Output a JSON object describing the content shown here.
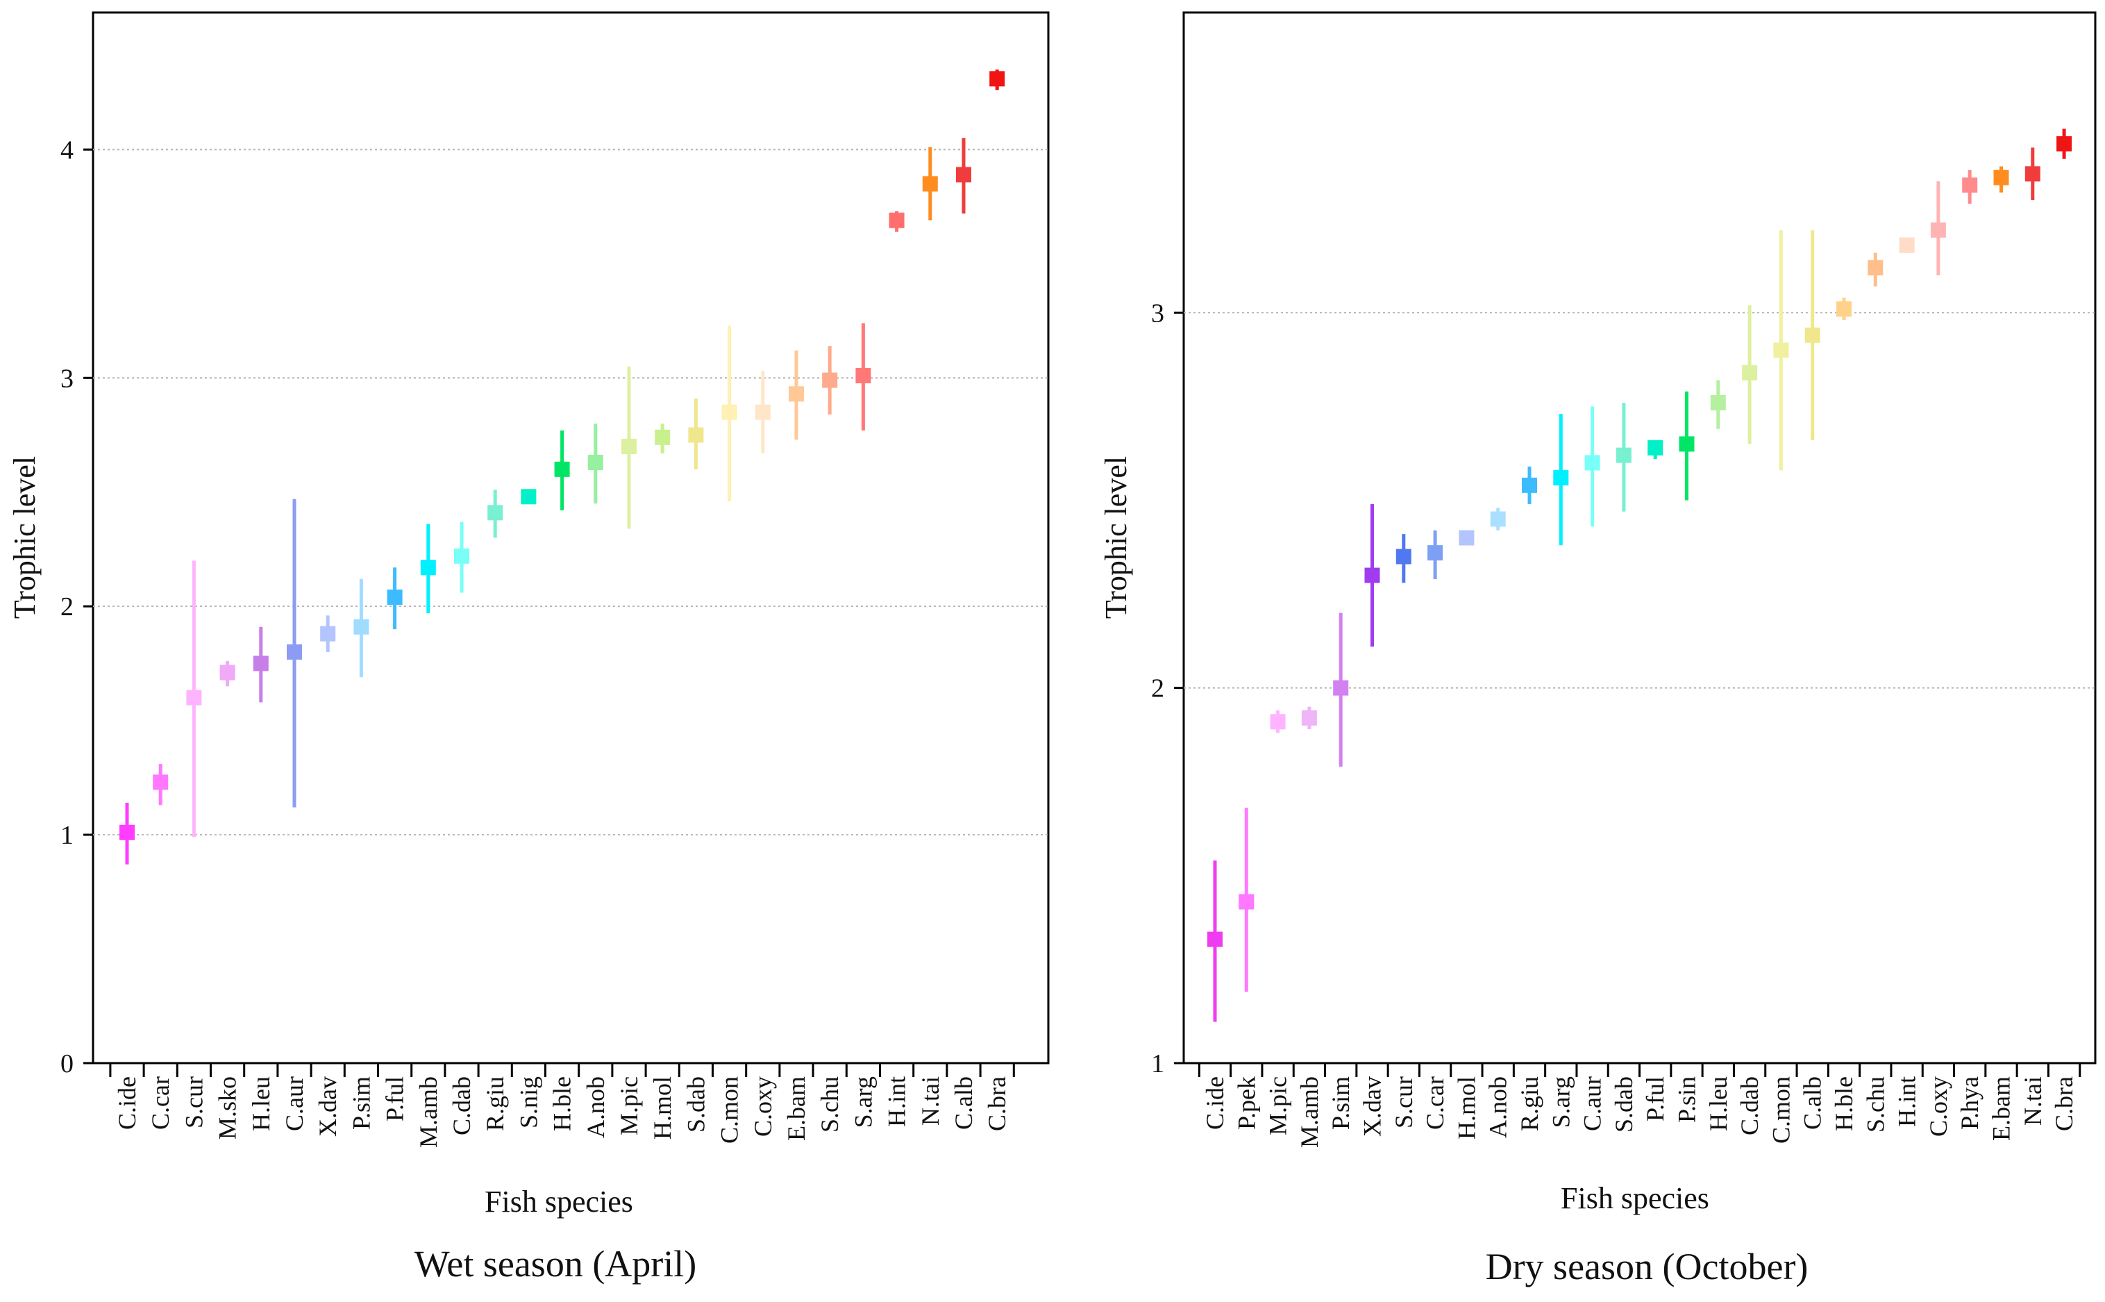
{
  "chart_data": [
    {
      "type": "errorbar",
      "title": "Wet season (April)",
      "xlabel": "Fish species",
      "ylabel": "Trophic level",
      "ylim": [
        0,
        4.6
      ],
      "yticks": [
        0,
        1,
        2,
        3,
        4
      ],
      "grid": "horizontal dotted",
      "categories": [
        "C.ide",
        "C.car",
        "S.cur",
        "M.sko",
        "H.leu",
        "C.aur",
        "X.dav",
        "P.sim",
        "P.ful",
        "M.amb",
        "C.dab",
        "R.giu",
        "S.nig",
        "H.ble",
        "A.nob",
        "M.pic",
        "H.mol",
        "S.dab",
        "C.mon",
        "C.oxy",
        "E.bam",
        "S.chu",
        "S.arg",
        "H.int",
        "N.tai",
        "C.alb",
        "C.bra"
      ],
      "values": [
        1.01,
        1.23,
        1.6,
        1.71,
        1.75,
        1.8,
        1.88,
        1.91,
        2.04,
        2.17,
        2.22,
        2.41,
        2.48,
        2.6,
        2.63,
        2.7,
        2.74,
        2.75,
        2.85,
        2.85,
        2.93,
        2.99,
        3.01,
        3.69,
        3.85,
        3.89,
        4.31
      ],
      "lower": [
        0.87,
        1.13,
        0.99,
        1.65,
        1.58,
        1.12,
        1.8,
        1.69,
        1.9,
        1.97,
        2.06,
        2.3,
        2.45,
        2.42,
        2.45,
        2.34,
        2.67,
        2.6,
        2.46,
        2.67,
        2.73,
        2.84,
        2.77,
        3.64,
        3.69,
        3.72,
        4.26
      ],
      "upper": [
        1.14,
        1.31,
        2.2,
        1.76,
        1.91,
        2.47,
        1.96,
        2.12,
        2.17,
        2.36,
        2.37,
        2.51,
        2.51,
        2.77,
        2.8,
        3.05,
        2.8,
        2.91,
        3.23,
        3.03,
        3.12,
        3.14,
        3.24,
        3.73,
        4.01,
        4.05,
        4.35
      ],
      "colors": [
        "#ff3cff",
        "#ff78ff",
        "#ffb4ff",
        "#f0aaf8",
        "#c87ee8",
        "#8c9cf4",
        "#b4c4ff",
        "#a0dcff",
        "#3cbcff",
        "#00f0ff",
        "#78fff8",
        "#78f0d2",
        "#00f0c8",
        "#00e664",
        "#96f0a0",
        "#dcf0a0",
        "#c8f08c",
        "#f0e68c",
        "#fff0b4",
        "#ffe6c8",
        "#ffc896",
        "#ffaa8c",
        "#ff7878",
        "#ff6e6e",
        "#ff8c1e",
        "#f03c3c",
        "#f01414"
      ]
    },
    {
      "type": "errorbar",
      "title": "Dry season (October)",
      "xlabel": "Fish species",
      "ylabel": "Trophic level",
      "ylim": [
        1,
        3.8
      ],
      "yticks": [
        1,
        2,
        3
      ],
      "grid": "horizontal dotted",
      "categories": [
        "C.ide",
        "P.pek",
        "M.pic",
        "M.amb",
        "P.sim",
        "X.dav",
        "S.cur",
        "C.car",
        "H.mol",
        "A.nob",
        "R.giu",
        "S.arg",
        "C.aur",
        "S.dab",
        "P.ful",
        "P.sin",
        "H.leu",
        "C.dab",
        "C.mon",
        "C.alb",
        "H.ble",
        "S.chu",
        "H.int",
        "C.oxy",
        "P.hya",
        "E.bam",
        "N.tai",
        "C.bra"
      ],
      "values": [
        1.33,
        1.43,
        1.91,
        1.92,
        2.0,
        2.3,
        2.35,
        2.36,
        2.4,
        2.45,
        2.54,
        2.56,
        2.6,
        2.62,
        2.64,
        2.65,
        2.76,
        2.84,
        2.9,
        2.94,
        3.01,
        3.12,
        3.18,
        3.22,
        3.34,
        3.36,
        3.37,
        3.45
      ],
      "lower": [
        1.11,
        1.19,
        1.88,
        1.89,
        1.79,
        2.11,
        2.28,
        2.29,
        2.38,
        2.42,
        2.49,
        2.38,
        2.43,
        2.47,
        2.61,
        2.5,
        2.69,
        2.65,
        2.58,
        2.66,
        2.98,
        3.07,
        3.16,
        3.1,
        3.29,
        3.32,
        3.3,
        3.41
      ],
      "upper": [
        1.54,
        1.68,
        1.94,
        1.95,
        2.2,
        2.49,
        2.41,
        2.42,
        2.42,
        2.48,
        2.59,
        2.73,
        2.75,
        2.76,
        2.66,
        2.79,
        2.82,
        3.02,
        3.22,
        3.22,
        3.04,
        3.16,
        3.2,
        3.35,
        3.38,
        3.39,
        3.44,
        3.49
      ],
      "colors": [
        "#f03cf0",
        "#ff78ff",
        "#ffb4ff",
        "#f0b4f8",
        "#d282f0",
        "#a03cf0",
        "#5078f0",
        "#7ea0f4",
        "#b4c4ff",
        "#aae0ff",
        "#3cbcff",
        "#00f0ff",
        "#78fff8",
        "#78f0d2",
        "#00f0c8",
        "#00e664",
        "#b4f0a0",
        "#dcf0a0",
        "#f0f0a0",
        "#f0e68c",
        "#ffd28c",
        "#ffbe8c",
        "#ffdcc8",
        "#ffb4b4",
        "#ff8c8c",
        "#ff8c1e",
        "#f03c3c",
        "#f01414"
      ]
    }
  ]
}
